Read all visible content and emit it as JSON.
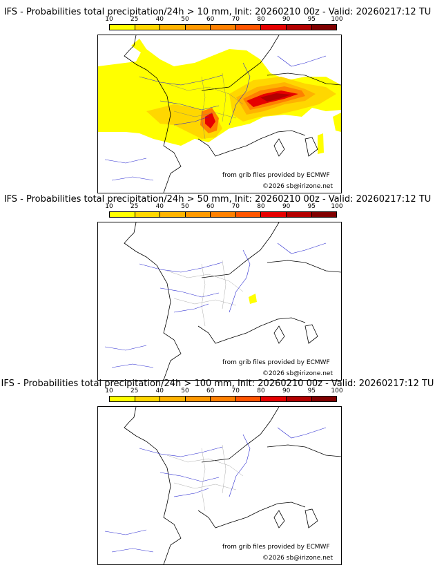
{
  "colorbar": {
    "ticks": [
      "10",
      "25",
      "40",
      "50",
      "60",
      "70",
      "80",
      "90",
      "95",
      "100"
    ],
    "colors": [
      "#ffff00",
      "#ffd700",
      "#ffb300",
      "#ff9900",
      "#ff8000",
      "#ff5500",
      "#e60000",
      "#b30000",
      "#800000"
    ]
  },
  "panels": [
    {
      "title": "IFS - Probabilities total precipitation/24h > 10 mm, Init: 20260210 00z - Valid: 20260217:12 TU"
    },
    {
      "title": "IFS - Probabilities total precipitation/24h > 50 mm, Init: 20260210 00z - Valid: 20260217:12 TU"
    },
    {
      "title": "IFS - Probabilities total precipitation/24h > 100 mm, Init: 20260210 00z - Valid: 20260217:12 TU"
    }
  ],
  "credits": {
    "source": "from grib files provided by ECMWF",
    "copyright": "©2026 sb@irizone.net"
  }
}
